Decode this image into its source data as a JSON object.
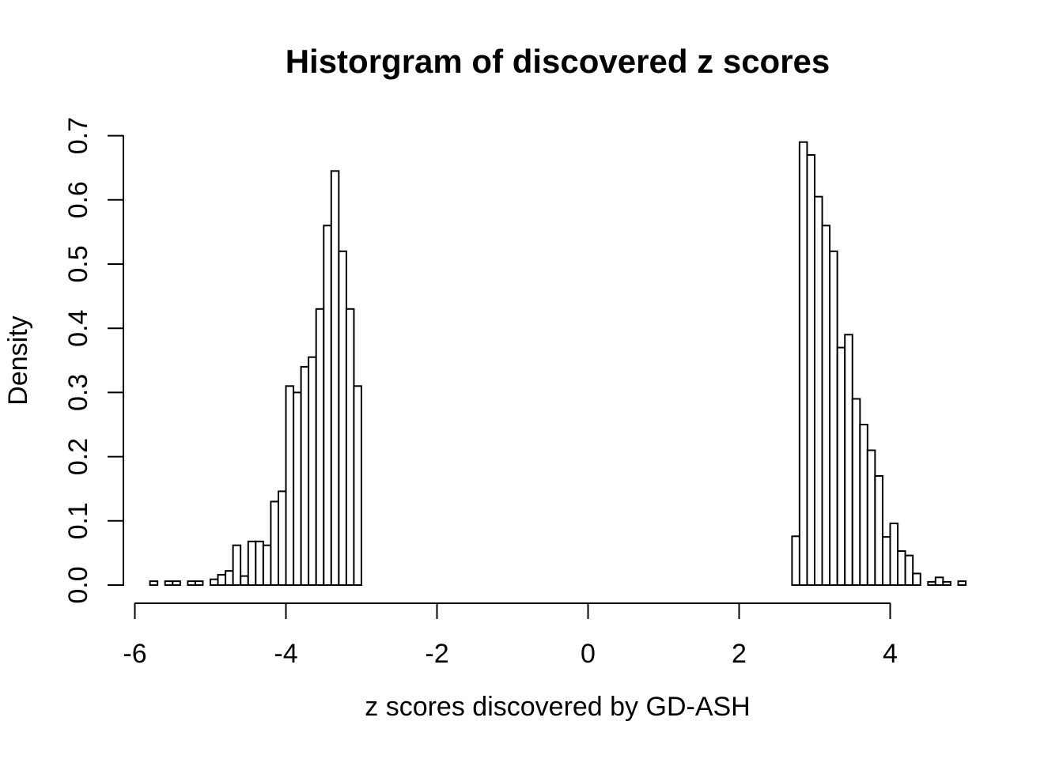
{
  "chart": {
    "title": "Historgram of discovered z scores",
    "xlabel": "z scores discovered by GD-ASH",
    "ylabel": "Density"
  },
  "chart_data": {
    "type": "bar",
    "subtype": "histogram",
    "title": "Historgram of discovered z scores",
    "xlabel": "z scores discovered by GD-ASH",
    "ylabel": "Density",
    "grid": false,
    "legend": "none",
    "bar_fill": "#ffffff",
    "bar_stroke": "#000000",
    "bin_width": 0.1,
    "x_ticks": [
      -6,
      -4,
      -2,
      0,
      2,
      4
    ],
    "y_tick_labels": [
      "0.0",
      "0.1",
      "0.2",
      "0.3",
      "0.4",
      "0.5",
      "0.6",
      "0.7"
    ],
    "xlim": [
      -6.2,
      5.4
    ],
    "ylim": [
      0,
      0.72
    ],
    "bins": [
      [
        -5.8,
        0.006
      ],
      [
        -5.6,
        0.006
      ],
      [
        -5.5,
        0.006
      ],
      [
        -5.3,
        0.006
      ],
      [
        -5.2,
        0.006
      ],
      [
        -5.0,
        0.009
      ],
      [
        -4.9,
        0.016
      ],
      [
        -4.8,
        0.022
      ],
      [
        -4.7,
        0.062
      ],
      [
        -4.6,
        0.014
      ],
      [
        -4.5,
        0.068
      ],
      [
        -4.4,
        0.068
      ],
      [
        -4.3,
        0.062
      ],
      [
        -4.2,
        0.13
      ],
      [
        -4.1,
        0.146
      ],
      [
        -4.0,
        0.31
      ],
      [
        -3.9,
        0.3
      ],
      [
        -3.8,
        0.34
      ],
      [
        -3.7,
        0.355
      ],
      [
        -3.6,
        0.43
      ],
      [
        -3.5,
        0.56
      ],
      [
        -3.4,
        0.645
      ],
      [
        -3.3,
        0.52
      ],
      [
        -3.2,
        0.43
      ],
      [
        -3.1,
        0.31
      ],
      [
        2.7,
        0.076
      ],
      [
        2.8,
        0.69
      ],
      [
        2.9,
        0.67
      ],
      [
        3.0,
        0.605
      ],
      [
        3.1,
        0.56
      ],
      [
        3.2,
        0.52
      ],
      [
        3.3,
        0.37
      ],
      [
        3.4,
        0.39
      ],
      [
        3.5,
        0.29
      ],
      [
        3.6,
        0.25
      ],
      [
        3.7,
        0.21
      ],
      [
        3.8,
        0.17
      ],
      [
        3.9,
        0.075
      ],
      [
        4.0,
        0.096
      ],
      [
        4.1,
        0.053
      ],
      [
        4.2,
        0.046
      ],
      [
        4.3,
        0.018
      ],
      [
        4.5,
        0.005
      ],
      [
        4.6,
        0.012
      ],
      [
        4.7,
        0.005
      ],
      [
        4.9,
        0.006
      ]
    ]
  }
}
